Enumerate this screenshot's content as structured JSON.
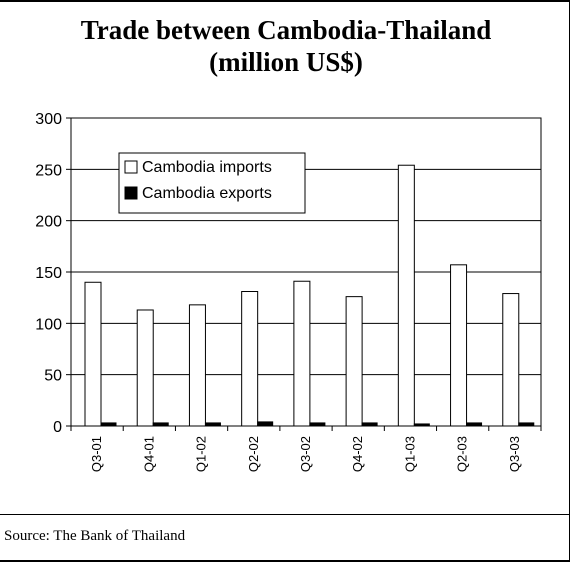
{
  "chart_data": {
    "type": "bar",
    "title_line1": "Trade between Cambodia-Thailand",
    "title_line2": "(million US$)",
    "categories": [
      "Q3-01",
      "Q4-01",
      "Q1-02",
      "Q2-02",
      "Q3-02",
      "Q4-02",
      "Q1-03",
      "Q2-03",
      "Q3-03"
    ],
    "series": [
      {
        "name": "Cambodia imports",
        "values": [
          140,
          113,
          118,
          131,
          141,
          126,
          254,
          157,
          129
        ],
        "color": "#ffffff"
      },
      {
        "name": "Cambodia exports",
        "values": [
          3,
          3,
          3,
          4,
          3,
          3,
          2,
          3,
          3
        ],
        "color": "#000000"
      }
    ],
    "ylim": [
      0,
      300
    ],
    "yticks": [
      "0",
      "50",
      "100",
      "150",
      "200",
      "250",
      "300"
    ],
    "grid": true,
    "legend_position": "top-left"
  },
  "source": "Source: The Bank of Thailand"
}
